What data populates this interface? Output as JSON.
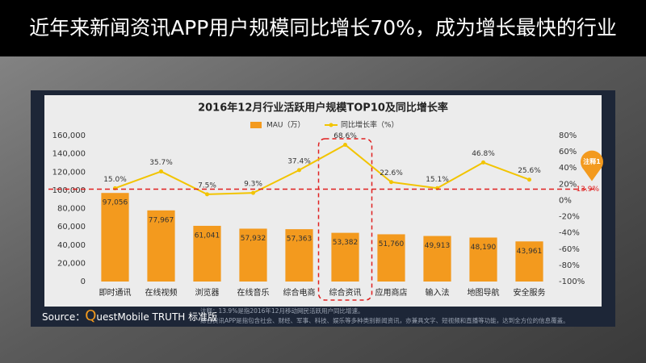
{
  "header": {
    "title": "近年来新闻资讯APP用户规模同比增长70%，成为增长最快的行业"
  },
  "chart_data": {
    "type": "combo",
    "title": "2016年12月行业活跃用户规模TOP10及同比增长率",
    "categories": [
      "即时通讯",
      "在线视频",
      "浏览器",
      "在线音乐",
      "综合电商",
      "综合资讯",
      "应用商店",
      "输入法",
      "地图导航",
      "安全服务"
    ],
    "series": [
      {
        "name": "MAU（万）",
        "type": "bar",
        "color": "#f39a1e",
        "values": [
          97056,
          77967,
          61041,
          57932,
          57363,
          53382,
          51760,
          49913,
          48190,
          43961
        ],
        "value_labels": [
          "97,056",
          "77,967",
          "61,041",
          "57,932",
          "57,363",
          "53,382",
          "51,760",
          "49,913",
          "48,190",
          "43,961"
        ]
      },
      {
        "name": "同比增长率（%）",
        "type": "line",
        "axis": "y2",
        "color": "#f2c400",
        "values": [
          15.0,
          35.7,
          7.5,
          9.3,
          37.4,
          68.6,
          22.6,
          15.1,
          46.8,
          25.6
        ],
        "value_labels": [
          "15.0%",
          "35.7%",
          "7.5%",
          "9.3%",
          "37.4%",
          "68.6%",
          "22.6%",
          "15.1%",
          "46.8%",
          "25.6%"
        ]
      }
    ],
    "ylim": [
      0,
      160000
    ],
    "yticks": [
      0,
      {
        "value": 20000,
        "label": "20,000"
      },
      {
        "value": 40000,
        "label": "40,000"
      },
      {
        "value": 60000,
        "label": "60,000"
      },
      {
        "value": 80000,
        "label": "80,000"
      },
      {
        "value": 100000,
        "label": "100,000"
      },
      {
        "value": 120000,
        "label": "120,000"
      },
      {
        "value": 140000,
        "label": "140,000"
      },
      {
        "value": 160000,
        "label": "160,000"
      }
    ],
    "y2lim": [
      -100,
      80
    ],
    "y2ticks": [
      {
        "value": -100,
        "label": "-100%"
      },
      {
        "value": -80,
        "label": "-80%"
      },
      {
        "value": -60,
        "label": "-60%"
      },
      {
        "value": -40,
        "label": "-40%"
      },
      {
        "value": -20,
        "label": "-20%"
      },
      {
        "value": 0,
        "label": "0%"
      },
      {
        "value": 20,
        "label": "20%"
      },
      {
        "value": 40,
        "label": "40%"
      },
      {
        "value": 60,
        "label": "60%"
      },
      {
        "value": 80,
        "label": "80%"
      }
    ],
    "reference_line": {
      "axis": "y2",
      "value": 13.9,
      "label": "13.9%",
      "color": "#e02020"
    },
    "annotation": "注释1",
    "highlight_index": 5,
    "footnotes": [
      "注释：13.9%是指2016年12月移动网民活跃用户同比增速。",
      "综合资讯APP是指包含社会、财经、军事、科技、娱乐等多种类别新闻资讯，亦兼具文字、短视频和直播等功能，达到全方位的信息覆盖。"
    ],
    "source_label": "Source：",
    "source": "QuestMobile TRUTH 标准版"
  }
}
